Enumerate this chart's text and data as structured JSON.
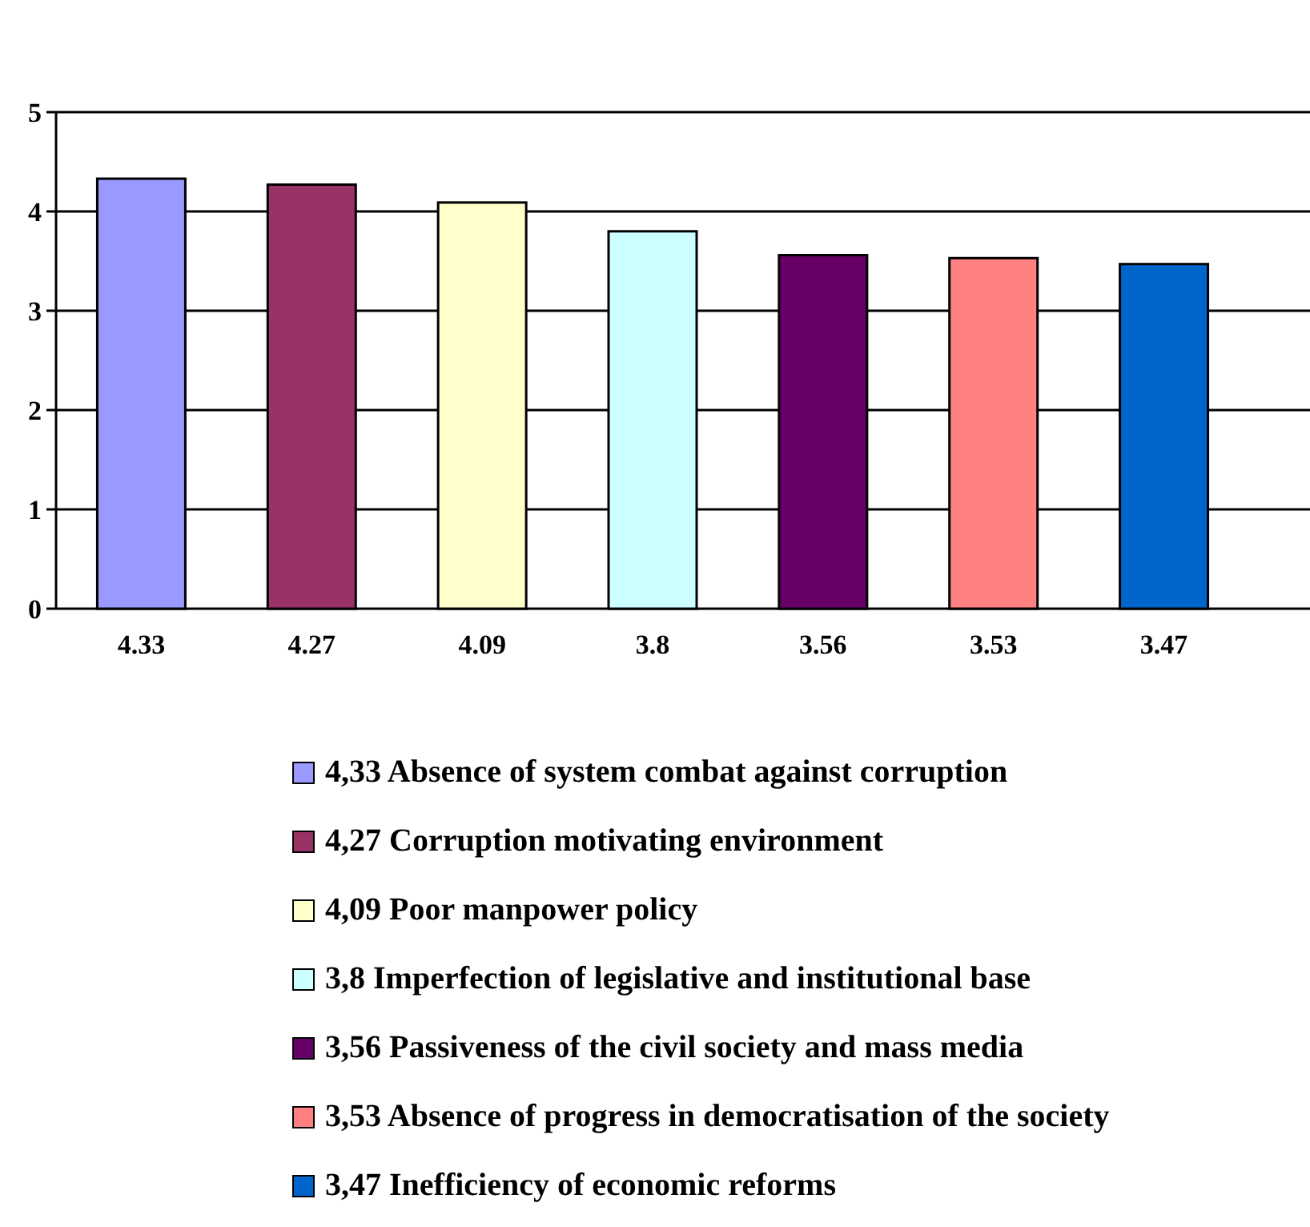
{
  "chart_data": {
    "type": "bar",
    "categories": [
      null
    ],
    "series": [
      {
        "name": "4,33 Absence of system combat against corruption",
        "color": "#9999ff",
        "values": [
          4.33
        ]
      },
      {
        "name": "4,27 Corruption motivating environment",
        "color": "#993366",
        "values": [
          4.27
        ]
      },
      {
        "name": "4,09 Poor manpower policy",
        "color": "#ffffcc",
        "values": [
          4.09
        ]
      },
      {
        "name": "3,8 Imperfection of legislative and institutional base",
        "color": "#ccffff",
        "values": [
          3.8
        ]
      },
      {
        "name": "3,56 Passiveness of the civil society and mass media",
        "color": "#660066",
        "values": [
          3.56
        ]
      },
      {
        "name": "3,53 Absence of progress in democratisation of the society",
        "color": "#ff8080",
        "values": [
          3.53
        ]
      },
      {
        "name": "3,47 Inefficiency of economic reforms",
        "color": "#0066cc",
        "values": [
          3.47
        ]
      }
    ],
    "ylim": [
      0,
      5
    ],
    "yticks": [
      0,
      1,
      2,
      3,
      4,
      5
    ],
    "grid": "y",
    "data_labels": true,
    "legend": "bottom"
  }
}
